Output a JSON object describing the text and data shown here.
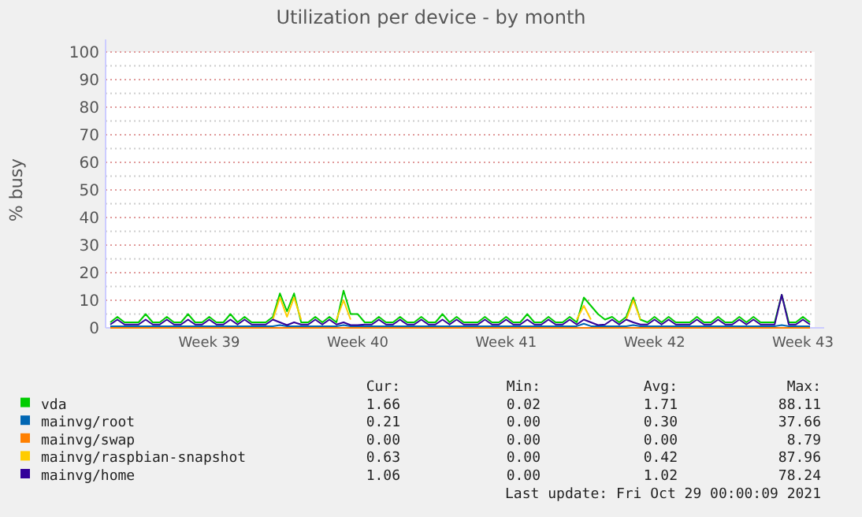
{
  "chart_data": {
    "type": "line",
    "title": "Utilization per device - by month",
    "ylabel": "% busy",
    "ylim": [
      0,
      100
    ],
    "categories": [
      null,
      null,
      null,
      null,
      null,
      null,
      null,
      null,
      null,
      null,
      null,
      null,
      null,
      null,
      "Week 39",
      null,
      null,
      null,
      null,
      null,
      null,
      null,
      null,
      null,
      null,
      null,
      null,
      null,
      null,
      null,
      null,
      null,
      null,
      null,
      null,
      "Week 40",
      null,
      null,
      null,
      null,
      null,
      null,
      null,
      null,
      null,
      null,
      null,
      null,
      null,
      null,
      null,
      null,
      null,
      null,
      null,
      null,
      "Week 41",
      null,
      null,
      null,
      null,
      null,
      null,
      null,
      null,
      null,
      null,
      null,
      null,
      null,
      null,
      null,
      null,
      null,
      null,
      null,
      null,
      "Week 42",
      null,
      null,
      null,
      null,
      null,
      null,
      null,
      null,
      null,
      null,
      null,
      null,
      null,
      null,
      null,
      null,
      null,
      null,
      null,
      null,
      "Week 43",
      null
    ],
    "yticks": [
      0,
      10,
      20,
      30,
      40,
      50,
      60,
      70,
      80,
      90,
      100
    ],
    "grid": "y",
    "legend": "bottom",
    "marker": "none",
    "line_style": "solid",
    "series": [
      {
        "name": "vda",
        "color": "#00cc00",
        "values": [
          2,
          4,
          2,
          2,
          2,
          5,
          2,
          2,
          4,
          2,
          2,
          5,
          2,
          2,
          4,
          2,
          2,
          5,
          2,
          4,
          2,
          2,
          2,
          4,
          12.5,
          6,
          12.5,
          2,
          2,
          4,
          2,
          4,
          2,
          13.5,
          5,
          5,
          2,
          2,
          4,
          2,
          2,
          4,
          2,
          2,
          4,
          2,
          2,
          5,
          2,
          4,
          2,
          2,
          2,
          4,
          2,
          2,
          4,
          2,
          2,
          5,
          2,
          2,
          4,
          2,
          2,
          4,
          2,
          11,
          8,
          5,
          3,
          4,
          2,
          4,
          11,
          3,
          2,
          4,
          2,
          4,
          2,
          2,
          2,
          4,
          2,
          2,
          4,
          2,
          2,
          4,
          2,
          4,
          2,
          2,
          2,
          12,
          2,
          2,
          4,
          2
        ]
      },
      {
        "name": "mainvg/root",
        "color": "#0066b3",
        "values": [
          0.6,
          0.6,
          0.6,
          0.6,
          0.6,
          0.6,
          0.6,
          0.6,
          0.6,
          0.6,
          0.6,
          0.6,
          0.6,
          0.6,
          0.6,
          0.6,
          0.6,
          0.6,
          0.6,
          0.6,
          0.6,
          0.6,
          0.6,
          0.6,
          1,
          0.6,
          0.6,
          0.6,
          0.6,
          0.6,
          0.6,
          0.6,
          0.6,
          1,
          0.6,
          0.6,
          0.6,
          0.6,
          0.6,
          0.6,
          0.6,
          0.6,
          0.6,
          0.6,
          0.6,
          0.6,
          0.6,
          0.6,
          0.6,
          0.6,
          0.6,
          0.6,
          0.6,
          0.6,
          0.6,
          0.6,
          0.6,
          0.6,
          0.6,
          0.6,
          0.6,
          0.6,
          0.6,
          0.6,
          0.6,
          0.6,
          0.6,
          1.5,
          0.6,
          0.6,
          0.6,
          0.6,
          0.6,
          0.6,
          1,
          0.6,
          0.6,
          0.6,
          0.6,
          0.6,
          0.6,
          0.6,
          0.6,
          0.6,
          0.6,
          0.6,
          0.6,
          0.6,
          0.6,
          0.6,
          0.6,
          0.6,
          0.6,
          0.6,
          0.6,
          1,
          0.6,
          0.6,
          0.6,
          0.6
        ]
      },
      {
        "name": "mainvg/swap",
        "color": "#ff8000",
        "values": [
          0,
          0,
          0,
          0,
          0,
          0,
          0,
          0,
          0,
          0,
          0,
          0,
          0,
          0,
          0,
          0,
          0,
          0,
          0,
          0,
          0,
          0,
          0,
          0,
          0,
          0,
          0,
          0,
          0,
          0,
          0,
          0,
          0,
          0,
          0,
          0,
          0,
          0,
          0,
          0,
          0,
          0,
          0,
          0,
          0,
          0,
          0,
          0,
          0,
          0,
          0,
          0,
          0,
          0,
          0,
          0,
          0,
          0,
          0,
          0,
          0,
          0,
          0,
          0,
          0,
          0,
          0,
          0,
          0,
          0,
          0,
          0,
          0,
          0,
          0,
          0,
          0,
          0,
          0,
          0,
          0,
          0,
          0,
          0,
          0,
          0,
          0,
          0,
          0,
          0,
          0,
          0,
          0,
          0,
          0,
          0,
          0,
          0,
          0,
          0
        ]
      },
      {
        "name": "mainvg/raspbian-snapshot",
        "color": "#ffcc00",
        "values": [
          null,
          null,
          null,
          null,
          null,
          null,
          null,
          null,
          null,
          null,
          null,
          null,
          null,
          null,
          null,
          null,
          null,
          null,
          null,
          null,
          null,
          null,
          null,
          3,
          11,
          4,
          11,
          3,
          null,
          null,
          null,
          null,
          3,
          10,
          3,
          null,
          null,
          null,
          null,
          null,
          null,
          null,
          null,
          null,
          null,
          null,
          null,
          null,
          null,
          null,
          null,
          null,
          null,
          null,
          null,
          null,
          null,
          null,
          null,
          null,
          null,
          null,
          null,
          null,
          null,
          null,
          3,
          8,
          3,
          null,
          null,
          null,
          null,
          3,
          10,
          3,
          null,
          null,
          null,
          null,
          null,
          null,
          null,
          null,
          null,
          null,
          null,
          null,
          null,
          null,
          null,
          null,
          null,
          null,
          null,
          null,
          null,
          null,
          null,
          null
        ]
      },
      {
        "name": "mainvg/home",
        "color": "#330099",
        "values": [
          1.2,
          3,
          1.2,
          1.2,
          1.2,
          3,
          1.2,
          1.2,
          3,
          1.2,
          1.2,
          3,
          1.2,
          1.2,
          3,
          1.2,
          1.2,
          3,
          1.2,
          3,
          1.2,
          1.2,
          1.2,
          3,
          2,
          1,
          2,
          1.2,
          1.2,
          3,
          1.2,
          3,
          1.2,
          2,
          1,
          1,
          1.2,
          1.2,
          3,
          1.2,
          1.2,
          3,
          1.2,
          1.2,
          3,
          1.2,
          1.2,
          3,
          1.2,
          3,
          1.2,
          1.2,
          1.2,
          3,
          1.2,
          1.2,
          3,
          1.2,
          1.2,
          3,
          1.2,
          1.2,
          3,
          1.2,
          1.2,
          3,
          1.2,
          3,
          2,
          1,
          1.2,
          3,
          1.2,
          3,
          2,
          1.2,
          1.2,
          3,
          1.2,
          3,
          1.2,
          1.2,
          1.2,
          3,
          1.2,
          1.2,
          3,
          1.2,
          1.2,
          3,
          1.2,
          3,
          1.2,
          1.2,
          1.2,
          12,
          1.2,
          1.2,
          3,
          1.2
        ]
      }
    ],
    "annotations": [
      "Cur:",
      "Min:",
      "Avg:",
      "Max:",
      "1.66",
      "0.02",
      "1.71",
      "88.11",
      "0.21",
      "0.00",
      "0.30",
      "37.66",
      "0.00",
      "0.00",
      "0.00",
      "8.79",
      "0.63",
      "0.00",
      "0.42",
      "87.96",
      "1.06",
      "0.00",
      "1.02",
      "78.24",
      "Last update: Fri Oct 29 00:00:09 2021"
    ]
  }
}
